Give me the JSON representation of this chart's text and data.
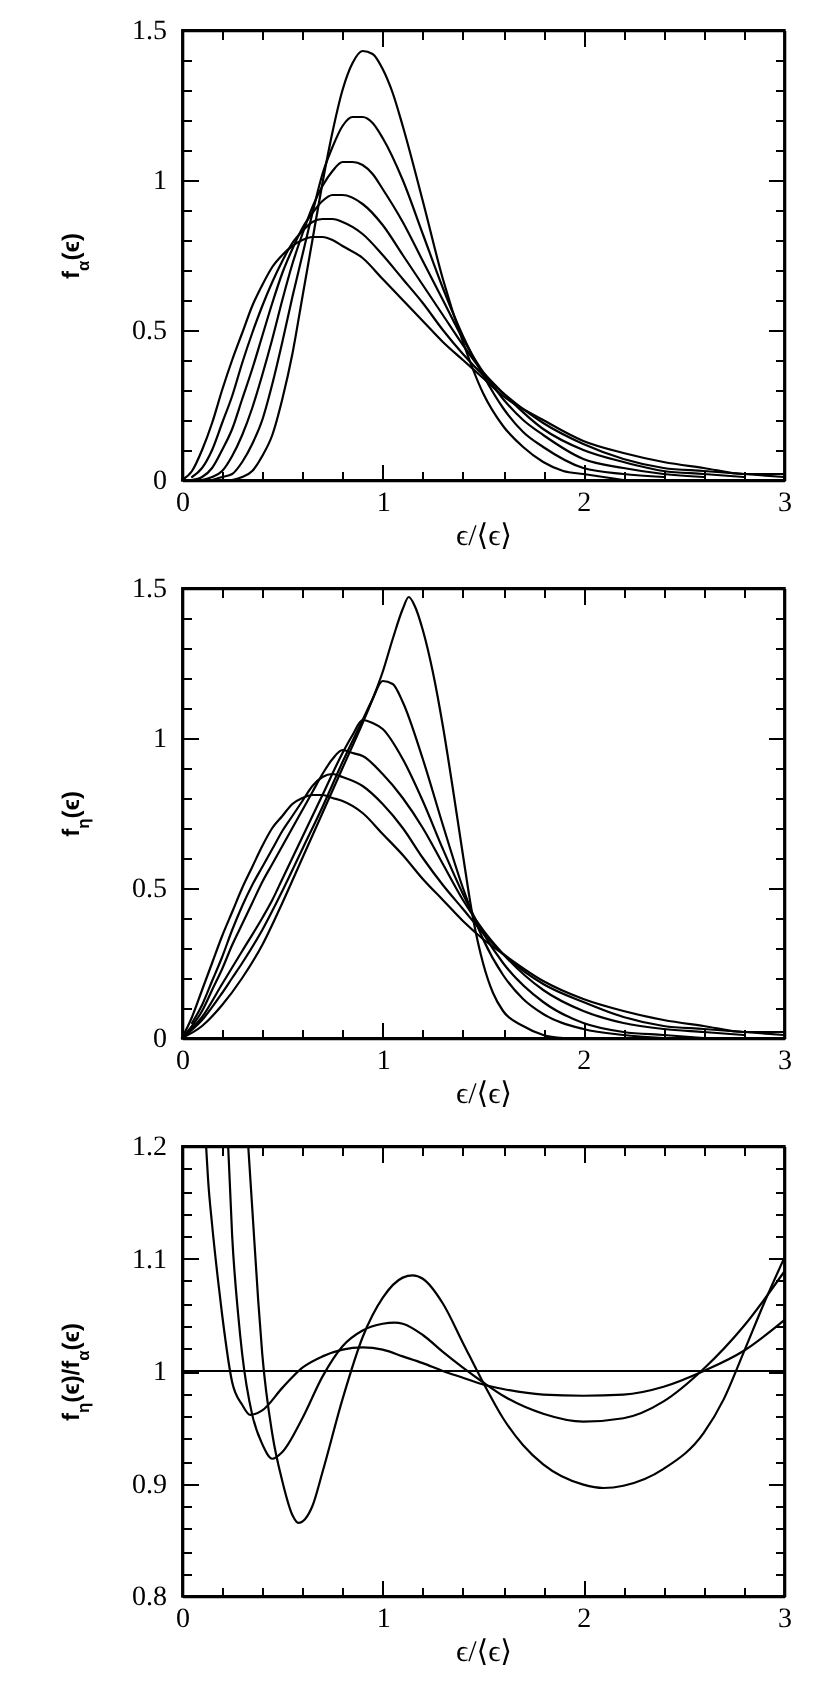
{
  "chart_data": [
    {
      "type": "line",
      "xlabel": "ϵ/⟨ϵ⟩",
      "ylabel": "f$_{α}$(ϵ)",
      "xlim": [
        0,
        3
      ],
      "ylim": [
        0,
        1.5
      ],
      "xticks": [
        0,
        {
          "value": 0.2,
          "label": null
        },
        {
          "value": 0.4,
          "label": null
        },
        {
          "value": 0.6,
          "label": null
        },
        {
          "value": 0.8,
          "label": null
        },
        1,
        {
          "value": 1.2,
          "label": null
        },
        {
          "value": 1.4,
          "label": null
        },
        {
          "value": 1.6,
          "label": null
        },
        {
          "value": 1.8,
          "label": null
        },
        2,
        {
          "value": 2.2,
          "label": null
        },
        {
          "value": 2.4,
          "label": null
        },
        {
          "value": 2.6,
          "label": null
        },
        {
          "value": 2.8,
          "label": null
        },
        3
      ],
      "yticks": [
        0,
        {
          "value": 0.1,
          "label": null
        },
        {
          "value": 0.2,
          "label": null
        },
        {
          "value": 0.3,
          "label": null
        },
        {
          "value": 0.4,
          "label": null
        },
        0.5,
        {
          "value": 0.6,
          "label": null
        },
        {
          "value": 0.7,
          "label": null
        },
        {
          "value": 0.8,
          "label": null
        },
        {
          "value": 0.9,
          "label": null
        },
        1,
        {
          "value": 1.1,
          "label": null
        },
        {
          "value": 1.2,
          "label": null
        },
        {
          "value": 1.3,
          "label": null
        },
        {
          "value": 1.4,
          "label": null
        },
        1.5
      ],
      "series": [
        {
          "color": "#000000",
          "x": [
            0.25,
            0.3,
            0.35,
            0.4,
            0.45,
            0.5,
            0.55,
            0.6,
            0.65,
            0.7,
            0.75,
            0.8,
            0.85,
            0.9,
            0.95,
            1,
            1.05,
            1.1,
            1.2,
            1.3,
            1.4,
            1.5,
            1.6,
            1.7,
            1.8,
            1.9,
            2,
            2.2
          ],
          "values": [
            0,
            0.01,
            0.03,
            0.08,
            0.15,
            0.27,
            0.42,
            0.61,
            0.8,
            0.99,
            1.16,
            1.3,
            1.39,
            1.43,
            1.42,
            1.37,
            1.29,
            1.18,
            0.93,
            0.67,
            0.46,
            0.29,
            0.18,
            0.11,
            0.06,
            0.03,
            0.02,
            0
          ]
        },
        {
          "color": "#000000",
          "x": [
            0.15,
            0.2,
            0.25,
            0.3,
            0.35,
            0.4,
            0.45,
            0.5,
            0.55,
            0.6,
            0.65,
            0.7,
            0.75,
            0.8,
            0.85,
            0.9,
            0.95,
            1,
            1.1,
            1.2,
            1.3,
            1.4,
            1.5,
            1.6,
            1.7,
            1.8,
            2,
            2.2,
            2.4
          ],
          "values": [
            0,
            0.01,
            0.02,
            0.06,
            0.12,
            0.2,
            0.32,
            0.46,
            0.61,
            0.75,
            0.89,
            1.02,
            1.11,
            1.18,
            1.21,
            1.21,
            1.19,
            1.14,
            1,
            0.82,
            0.64,
            0.48,
            0.35,
            0.24,
            0.16,
            0.11,
            0.04,
            0.02,
            0.01
          ]
        },
        {
          "color": "#000000",
          "x": [
            0.1,
            0.15,
            0.2,
            0.25,
            0.3,
            0.35,
            0.4,
            0.45,
            0.5,
            0.55,
            0.6,
            0.65,
            0.7,
            0.75,
            0.8,
            0.85,
            0.9,
            0.95,
            1,
            1.1,
            1.2,
            1.3,
            1.4,
            1.5,
            1.6,
            1.7,
            1.8,
            2,
            2.2,
            2.4,
            2.6
          ],
          "values": [
            0,
            0.01,
            0.03,
            0.08,
            0.15,
            0.24,
            0.35,
            0.47,
            0.6,
            0.72,
            0.82,
            0.91,
            0.98,
            1.03,
            1.06,
            1.06,
            1.05,
            1.02,
            0.97,
            0.86,
            0.73,
            0.6,
            0.47,
            0.36,
            0.27,
            0.2,
            0.15,
            0.07,
            0.04,
            0.02,
            0.01
          ]
        },
        {
          "color": "#000000",
          "x": [
            0.05,
            0.1,
            0.15,
            0.2,
            0.25,
            0.3,
            0.35,
            0.4,
            0.45,
            0.5,
            0.55,
            0.6,
            0.65,
            0.7,
            0.75,
            0.8,
            0.9,
            1,
            1.1,
            1.2,
            1.3,
            1.4,
            1.5,
            1.6,
            1.8,
            2,
            2.2,
            2.4,
            2.6,
            2.8
          ],
          "values": [
            0,
            0.01,
            0.04,
            0.1,
            0.17,
            0.27,
            0.37,
            0.48,
            0.59,
            0.69,
            0.77,
            0.84,
            0.89,
            0.93,
            0.95,
            0.95,
            0.92,
            0.85,
            0.75,
            0.65,
            0.55,
            0.45,
            0.36,
            0.29,
            0.17,
            0.1,
            0.06,
            0.03,
            0.02,
            0.01
          ]
        },
        {
          "color": "#000000",
          "x": [
            0.05,
            0.1,
            0.15,
            0.2,
            0.25,
            0.3,
            0.35,
            0.4,
            0.45,
            0.5,
            0.55,
            0.6,
            0.65,
            0.7,
            0.75,
            0.8,
            0.9,
            1,
            1.1,
            1.2,
            1.3,
            1.4,
            1.5,
            1.6,
            1.8,
            2,
            2.2,
            2.4,
            2.6,
            2.8,
            3
          ],
          "values": [
            0.01,
            0.04,
            0.1,
            0.19,
            0.28,
            0.39,
            0.49,
            0.58,
            0.66,
            0.73,
            0.79,
            0.83,
            0.86,
            0.87,
            0.87,
            0.86,
            0.82,
            0.75,
            0.67,
            0.59,
            0.5,
            0.42,
            0.35,
            0.29,
            0.19,
            0.12,
            0.07,
            0.04,
            0.03,
            0.02,
            0.01
          ]
        },
        {
          "color": "#000000",
          "x": [
            0,
            0.05,
            0.1,
            0.15,
            0.2,
            0.25,
            0.3,
            0.35,
            0.4,
            0.45,
            0.5,
            0.55,
            0.6,
            0.65,
            0.7,
            0.75,
            0.8,
            0.9,
            1,
            1.1,
            1.2,
            1.3,
            1.4,
            1.5,
            1.6,
            1.8,
            2,
            2.2,
            2.4,
            2.6,
            2.8,
            3
          ],
          "values": [
            0,
            0.03,
            0.1,
            0.19,
            0.3,
            0.4,
            0.49,
            0.58,
            0.65,
            0.71,
            0.75,
            0.78,
            0.8,
            0.81,
            0.81,
            0.8,
            0.78,
            0.74,
            0.67,
            0.6,
            0.53,
            0.46,
            0.4,
            0.34,
            0.28,
            0.2,
            0.13,
            0.09,
            0.06,
            0.04,
            0.02,
            0.02
          ]
        }
      ]
    },
    {
      "type": "line",
      "xlabel": "ϵ/⟨ϵ⟩",
      "ylabel": "f$_{η}$(ϵ)",
      "xlim": [
        0,
        3
      ],
      "ylim": [
        0,
        1.5
      ],
      "xticks": [
        0,
        {
          "value": 0.2,
          "label": null
        },
        {
          "value": 0.4,
          "label": null
        },
        {
          "value": 0.6,
          "label": null
        },
        {
          "value": 0.8,
          "label": null
        },
        1,
        {
          "value": 1.2,
          "label": null
        },
        {
          "value": 1.4,
          "label": null
        },
        {
          "value": 1.6,
          "label": null
        },
        {
          "value": 1.8,
          "label": null
        },
        2,
        {
          "value": 2.2,
          "label": null
        },
        {
          "value": 2.4,
          "label": null
        },
        {
          "value": 2.6,
          "label": null
        },
        {
          "value": 2.8,
          "label": null
        },
        3
      ],
      "yticks": [
        0,
        {
          "value": 0.1,
          "label": null
        },
        {
          "value": 0.2,
          "label": null
        },
        {
          "value": 0.3,
          "label": null
        },
        {
          "value": 0.4,
          "label": null
        },
        0.5,
        {
          "value": 0.6,
          "label": null
        },
        {
          "value": 0.7,
          "label": null
        },
        {
          "value": 0.8,
          "label": null
        },
        {
          "value": 0.9,
          "label": null
        },
        1,
        {
          "value": 1.1,
          "label": null
        },
        {
          "value": 1.2,
          "label": null
        },
        {
          "value": 1.3,
          "label": null
        },
        {
          "value": 1.4,
          "label": null
        },
        1.5
      ],
      "series": [
        {
          "color": "#000000",
          "x": [
            0,
            0.1,
            0.2,
            0.3,
            0.4,
            0.5,
            0.6,
            0.7,
            0.8,
            0.9,
            0.95,
            1,
            1.05,
            1.1,
            1.13,
            1.16,
            1.2,
            1.25,
            1.3,
            1.35,
            1.4,
            1.45,
            1.5,
            1.55,
            1.6,
            1.7,
            1.8,
            1.9
          ],
          "values": [
            0,
            0.04,
            0.11,
            0.2,
            0.31,
            0.45,
            0.6,
            0.75,
            0.9,
            1.05,
            1.13,
            1.22,
            1.33,
            1.43,
            1.47,
            1.44,
            1.36,
            1.22,
            1.04,
            0.83,
            0.61,
            0.4,
            0.25,
            0.15,
            0.09,
            0.04,
            0.01,
            0
          ]
        },
        {
          "color": "#000000",
          "x": [
            0,
            0.1,
            0.2,
            0.25,
            0.3,
            0.4,
            0.5,
            0.6,
            0.7,
            0.8,
            0.9,
            0.95,
            1,
            1.05,
            1.1,
            1.2,
            1.3,
            1.4,
            1.5,
            1.6,
            1.7,
            1.8,
            2,
            2.2,
            2.4
          ],
          "values": [
            0,
            0.06,
            0.15,
            0.2,
            0.25,
            0.36,
            0.49,
            0.63,
            0.77,
            0.92,
            1.06,
            1.13,
            1.19,
            1.18,
            1.12,
            0.93,
            0.71,
            0.5,
            0.33,
            0.21,
            0.13,
            0.08,
            0.03,
            0.01,
            0
          ]
        },
        {
          "color": "#000000",
          "x": [
            0,
            0.1,
            0.2,
            0.3,
            0.4,
            0.45,
            0.5,
            0.6,
            0.7,
            0.8,
            0.85,
            0.9,
            0.95,
            1,
            1.1,
            1.2,
            1.3,
            1.4,
            1.5,
            1.6,
            1.8,
            2,
            2.2,
            2.4,
            2.6
          ],
          "values": [
            0,
            0.07,
            0.18,
            0.29,
            0.4,
            0.46,
            0.53,
            0.67,
            0.81,
            0.95,
            1.01,
            1.06,
            1.05,
            1.03,
            0.93,
            0.79,
            0.63,
            0.48,
            0.35,
            0.25,
            0.12,
            0.05,
            0.02,
            0.01,
            0
          ]
        },
        {
          "color": "#000000",
          "x": [
            0,
            0.05,
            0.1,
            0.15,
            0.2,
            0.25,
            0.3,
            0.35,
            0.4,
            0.45,
            0.5,
            0.55,
            0.6,
            0.65,
            0.7,
            0.75,
            0.8,
            0.85,
            0.9,
            1,
            1.1,
            1.2,
            1.3,
            1.4,
            1.5,
            1.6,
            1.8,
            2,
            2.2,
            2.4,
            2.6,
            2.8
          ],
          "values": [
            0,
            0.04,
            0.09,
            0.16,
            0.23,
            0.31,
            0.38,
            0.45,
            0.52,
            0.58,
            0.64,
            0.7,
            0.76,
            0.82,
            0.88,
            0.93,
            0.96,
            0.95,
            0.94,
            0.88,
            0.8,
            0.7,
            0.58,
            0.46,
            0.36,
            0.28,
            0.16,
            0.09,
            0.05,
            0.03,
            0.02,
            0.01
          ]
        },
        {
          "color": "#000000",
          "x": [
            0.05,
            0.1,
            0.15,
            0.2,
            0.25,
            0.3,
            0.35,
            0.4,
            0.45,
            0.5,
            0.55,
            0.6,
            0.65,
            0.7,
            0.75,
            0.8,
            0.9,
            1,
            1.1,
            1.2,
            1.3,
            1.4,
            1.5,
            1.6,
            1.8,
            2,
            2.2,
            2.4,
            2.6,
            2.8,
            3
          ],
          "values": [
            0.05,
            0.11,
            0.19,
            0.27,
            0.36,
            0.44,
            0.51,
            0.57,
            0.63,
            0.69,
            0.74,
            0.79,
            0.84,
            0.87,
            0.88,
            0.87,
            0.84,
            0.78,
            0.7,
            0.6,
            0.51,
            0.43,
            0.35,
            0.28,
            0.18,
            0.12,
            0.07,
            0.04,
            0.03,
            0.02,
            0.01
          ]
        },
        {
          "color": "#000000",
          "x": [
            0,
            0.05,
            0.1,
            0.15,
            0.2,
            0.25,
            0.3,
            0.35,
            0.4,
            0.45,
            0.5,
            0.55,
            0.6,
            0.65,
            0.7,
            0.75,
            0.8,
            0.9,
            1,
            1.1,
            1.2,
            1.3,
            1.4,
            1.5,
            1.6,
            1.8,
            2,
            2.2,
            2.4,
            2.6,
            2.8,
            3
          ],
          "values": [
            0,
            0.07,
            0.16,
            0.25,
            0.34,
            0.42,
            0.5,
            0.57,
            0.64,
            0.7,
            0.74,
            0.78,
            0.8,
            0.81,
            0.81,
            0.8,
            0.79,
            0.75,
            0.68,
            0.61,
            0.53,
            0.46,
            0.39,
            0.33,
            0.28,
            0.19,
            0.13,
            0.09,
            0.06,
            0.04,
            0.02,
            0.02
          ]
        }
      ]
    },
    {
      "type": "line",
      "xlabel": "ϵ/⟨ϵ⟩",
      "ylabel": "f$_{η}$(ϵ)/f$_{α}$(ϵ)",
      "xlim": [
        0,
        3
      ],
      "ylim": [
        0.8,
        1.2
      ],
      "xticks": [
        0,
        {
          "value": 0.2,
          "label": null
        },
        {
          "value": 0.4,
          "label": null
        },
        {
          "value": 0.6,
          "label": null
        },
        {
          "value": 0.8,
          "label": null
        },
        1,
        {
          "value": 1.2,
          "label": null
        },
        {
          "value": 1.4,
          "label": null
        },
        {
          "value": 1.6,
          "label": null
        },
        {
          "value": 1.8,
          "label": null
        },
        2,
        {
          "value": 2.2,
          "label": null
        },
        {
          "value": 2.4,
          "label": null
        },
        {
          "value": 2.6,
          "label": null
        },
        {
          "value": 2.8,
          "label": null
        },
        3
      ],
      "yticks": [
        0.8,
        {
          "value": 0.82,
          "label": null
        },
        {
          "value": 0.84,
          "label": null
        },
        {
          "value": 0.86,
          "label": null
        },
        {
          "value": 0.88,
          "label": null
        },
        0.9,
        {
          "value": 0.92,
          "label": null
        },
        {
          "value": 0.94,
          "label": null
        },
        {
          "value": 0.96,
          "label": null
        },
        {
          "value": 0.98,
          "label": null
        },
        1,
        {
          "value": 1.02,
          "label": null
        },
        {
          "value": 1.04,
          "label": null
        },
        {
          "value": 1.06,
          "label": null
        },
        {
          "value": 1.08,
          "label": null
        },
        1.1,
        {
          "value": 1.12,
          "label": null
        },
        {
          "value": 1.14,
          "label": null
        },
        {
          "value": 1.16,
          "label": null
        },
        {
          "value": 1.18,
          "label": null
        },
        1.2
      ],
      "ref_lines": [
        {
          "axis": "y",
          "value": 1,
          "color": "#000000"
        }
      ],
      "series": [
        {
          "color": "#000000",
          "x": [
            0.12,
            0.13,
            0.15,
            0.18,
            0.2,
            0.25,
            0.3,
            0.34,
            0.4,
            0.5,
            0.6,
            0.7,
            0.8,
            0.9,
            1,
            1.1,
            1.2,
            1.3,
            1.4,
            1.5,
            1.6,
            1.8,
            2,
            2.2,
            2.4,
            2.6,
            2.8,
            3
          ],
          "values": [
            1.2,
            1.17,
            1.13,
            1.08,
            1.05,
            0.99,
            0.97,
            0.961,
            0.965,
            0.985,
            1.003,
            1.013,
            1.019,
            1.021,
            1.019,
            1.013,
            1.007,
            1,
            0.994,
            0.988,
            0.984,
            0.979,
            0.978,
            0.979,
            0.986,
            1,
            1.018,
            1.045
          ]
        },
        {
          "color": "#000000",
          "x": [
            0.23,
            0.25,
            0.28,
            0.3,
            0.35,
            0.4,
            0.45,
            0.5,
            0.6,
            0.7,
            0.8,
            0.9,
            1,
            1.06,
            1.1,
            1.2,
            1.3,
            1.4,
            1.5,
            1.6,
            1.8,
            2,
            2.2,
            2.4,
            2.6,
            2.8,
            3
          ],
          "values": [
            1.2,
            1.12,
            1.05,
            1.015,
            0.961,
            0.935,
            0.922,
            0.928,
            0.958,
            0.995,
            1.022,
            1.036,
            1.042,
            1.043,
            1.042,
            1.032,
            1.017,
            1.003,
            0.99,
            0.978,
            0.962,
            0.955,
            0.958,
            0.973,
            1.002,
            1.04,
            1.088
          ]
        },
        {
          "color": "#000000",
          "x": [
            0.33,
            0.35,
            0.38,
            0.4,
            0.45,
            0.5,
            0.55,
            0.58,
            0.65,
            0.7,
            0.8,
            0.9,
            1,
            1.1,
            1.15,
            1.2,
            1.3,
            1.4,
            1.5,
            1.6,
            1.7,
            1.8,
            2,
            2.1,
            2.2,
            2.4,
            2.6,
            2.7,
            2.8,
            2.9,
            3
          ],
          "values": [
            1.2,
            1.145,
            1.062,
            1.015,
            0.944,
            0.902,
            0.872,
            0.865,
            0.88,
            0.91,
            0.975,
            1.03,
            1.065,
            1.083,
            1.085,
            1.082,
            1.06,
            1.025,
            0.99,
            0.958,
            0.934,
            0.917,
            0.899,
            0.896,
            0.898,
            0.913,
            0.945,
            0.975,
            1.017,
            1.06,
            1.1
          ]
        }
      ]
    }
  ]
}
